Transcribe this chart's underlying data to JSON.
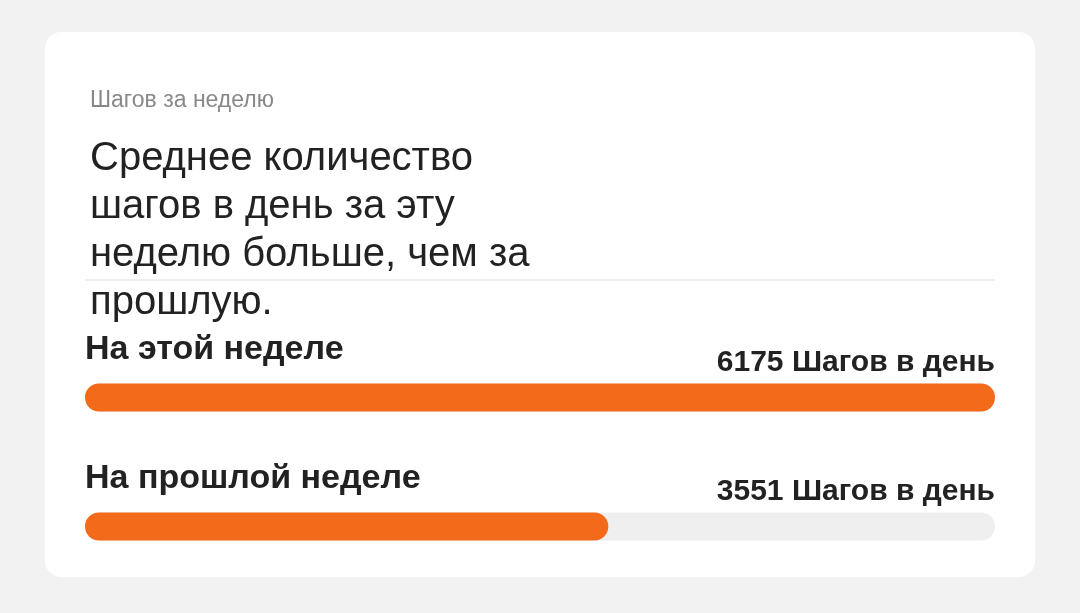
{
  "chart_data": {
    "type": "bar",
    "orientation": "horizontal",
    "title": "Шагов за неделю",
    "subtitle": "Среднее количество шагов в день за эту неделю больше, чем за прошлую.",
    "categories": [
      "На этой неделе",
      "На прошлой неделе"
    ],
    "values": [
      6175,
      3551
    ],
    "value_labels": [
      "6175 Шагов в день",
      "3551 Шагов в день"
    ],
    "color": "#f36a1a"
  }
}
